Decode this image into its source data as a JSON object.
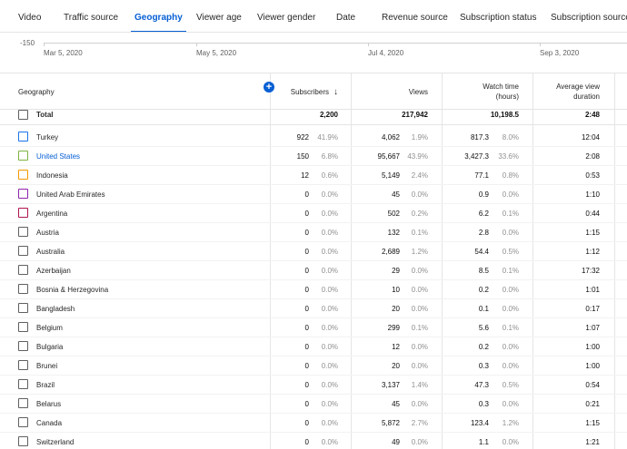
{
  "tabs": [
    {
      "label": "Video"
    },
    {
      "label": "Traffic source"
    },
    {
      "label": "Geography"
    },
    {
      "label": "Viewer age"
    },
    {
      "label": "Viewer gender"
    },
    {
      "label": "Date"
    },
    {
      "label": "Revenue source"
    },
    {
      "label": "Subscription status"
    },
    {
      "label": "Subscription source"
    }
  ],
  "active_tab": "Geography",
  "chart": {
    "y_tick": "-150",
    "x_labels": [
      "Mar 5, 2020",
      "May 5, 2020",
      "Jul 4, 2020",
      "Sep 3, 2020"
    ]
  },
  "table": {
    "headers": {
      "geography": "Geography",
      "subscribers": "Subscribers",
      "views": "Views",
      "watch_time_1": "Watch time",
      "watch_time_2": "(hours)",
      "avd_1": "Average view",
      "avd_2": "duration"
    },
    "sort_icon": "arrow-down-icon",
    "total": {
      "label": "Total",
      "subscribers": "2,200",
      "views": "217,942",
      "watch_time": "10,198.5",
      "avd": "2:48"
    },
    "rows": [
      {
        "name": "Turkey",
        "color": "#1a73e8",
        "link": false,
        "subs": "922",
        "subs_pct": "41.9%",
        "views": "4,062",
        "views_pct": "1.9%",
        "wt": "817.3",
        "wt_pct": "8.0%",
        "avd": "12:04"
      },
      {
        "name": "United States",
        "color": "#7cb342",
        "link": true,
        "subs": "150",
        "subs_pct": "6.8%",
        "views": "95,667",
        "views_pct": "43.9%",
        "wt": "3,427.3",
        "wt_pct": "33.6%",
        "avd": "2:08"
      },
      {
        "name": "Indonesia",
        "color": "#f29900",
        "link": false,
        "subs": "12",
        "subs_pct": "0.6%",
        "views": "5,149",
        "views_pct": "2.4%",
        "wt": "77.1",
        "wt_pct": "0.8%",
        "avd": "0:53"
      },
      {
        "name": "United Arab Emirates",
        "color": "#8e24aa",
        "link": false,
        "subs": "0",
        "subs_pct": "0.0%",
        "views": "45",
        "views_pct": "0.0%",
        "wt": "0.9",
        "wt_pct": "0.0%",
        "avd": "1:10"
      },
      {
        "name": "Argentina",
        "color": "#b0124f",
        "link": false,
        "subs": "0",
        "subs_pct": "0.0%",
        "views": "502",
        "views_pct": "0.2%",
        "wt": "6.2",
        "wt_pct": "0.1%",
        "avd": "0:44"
      },
      {
        "name": "Austria",
        "color": "#606060",
        "link": false,
        "subs": "0",
        "subs_pct": "0.0%",
        "views": "132",
        "views_pct": "0.1%",
        "wt": "2.8",
        "wt_pct": "0.0%",
        "avd": "1:15"
      },
      {
        "name": "Australia",
        "color": "#606060",
        "link": false,
        "subs": "0",
        "subs_pct": "0.0%",
        "views": "2,689",
        "views_pct": "1.2%",
        "wt": "54.4",
        "wt_pct": "0.5%",
        "avd": "1:12"
      },
      {
        "name": "Azerbaijan",
        "color": "#606060",
        "link": false,
        "subs": "0",
        "subs_pct": "0.0%",
        "views": "29",
        "views_pct": "0.0%",
        "wt": "8.5",
        "wt_pct": "0.1%",
        "avd": "17:32"
      },
      {
        "name": "Bosnia & Herzegovina",
        "color": "#606060",
        "link": false,
        "subs": "0",
        "subs_pct": "0.0%",
        "views": "10",
        "views_pct": "0.0%",
        "wt": "0.2",
        "wt_pct": "0.0%",
        "avd": "1:01"
      },
      {
        "name": "Bangladesh",
        "color": "#606060",
        "link": false,
        "subs": "0",
        "subs_pct": "0.0%",
        "views": "20",
        "views_pct": "0.0%",
        "wt": "0.1",
        "wt_pct": "0.0%",
        "avd": "0:17"
      },
      {
        "name": "Belgium",
        "color": "#606060",
        "link": false,
        "subs": "0",
        "subs_pct": "0.0%",
        "views": "299",
        "views_pct": "0.1%",
        "wt": "5.6",
        "wt_pct": "0.1%",
        "avd": "1:07"
      },
      {
        "name": "Bulgaria",
        "color": "#606060",
        "link": false,
        "subs": "0",
        "subs_pct": "0.0%",
        "views": "12",
        "views_pct": "0.0%",
        "wt": "0.2",
        "wt_pct": "0.0%",
        "avd": "1:00"
      },
      {
        "name": "Brunei",
        "color": "#606060",
        "link": false,
        "subs": "0",
        "subs_pct": "0.0%",
        "views": "20",
        "views_pct": "0.0%",
        "wt": "0.3",
        "wt_pct": "0.0%",
        "avd": "1:00"
      },
      {
        "name": "Brazil",
        "color": "#606060",
        "link": false,
        "subs": "0",
        "subs_pct": "0.0%",
        "views": "3,137",
        "views_pct": "1.4%",
        "wt": "47.3",
        "wt_pct": "0.5%",
        "avd": "0:54"
      },
      {
        "name": "Belarus",
        "color": "#606060",
        "link": false,
        "subs": "0",
        "subs_pct": "0.0%",
        "views": "45",
        "views_pct": "0.0%",
        "wt": "0.3",
        "wt_pct": "0.0%",
        "avd": "0:21"
      },
      {
        "name": "Canada",
        "color": "#606060",
        "link": false,
        "subs": "0",
        "subs_pct": "0.0%",
        "views": "5,872",
        "views_pct": "2.7%",
        "wt": "123.4",
        "wt_pct": "1.2%",
        "avd": "1:15"
      },
      {
        "name": "Switzerland",
        "color": "#606060",
        "link": false,
        "subs": "0",
        "subs_pct": "0.0%",
        "views": "49",
        "views_pct": "0.0%",
        "wt": "1.1",
        "wt_pct": "0.0%",
        "avd": "1:21"
      }
    ]
  }
}
